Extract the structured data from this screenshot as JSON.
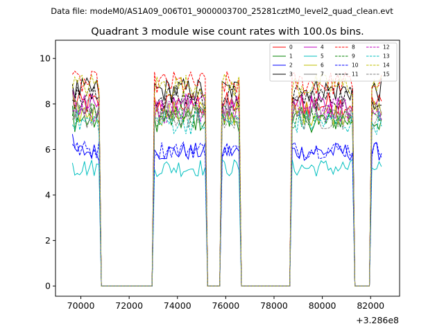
{
  "header": {
    "data_file": "Data file: modeM0/AS1A09_006T01_9000003700_25281cztM0_level2_quad_clean.evt"
  },
  "chart_data": {
    "type": "line",
    "title": "Quadrant 3 module wise count rates with 100.0s bins.",
    "xlabel": "",
    "ylabel": "",
    "x_offset_label": "+3.286e8",
    "xlim": [
      68950,
      83200
    ],
    "ylim": [
      -0.45,
      10.8
    ],
    "x_ticks": [
      70000,
      72000,
      74000,
      76000,
      78000,
      80000,
      82000
    ],
    "x_tick_labels": [
      "70000",
      "72000",
      "74000",
      "76000",
      "78000",
      "80000",
      "82000"
    ],
    "y_ticks": [
      0,
      2,
      4,
      6,
      8,
      10
    ],
    "y_tick_labels": [
      "0",
      "2",
      "4",
      "6",
      "8",
      "10"
    ],
    "legend_position": "top-right",
    "segments": [
      {
        "start": 69650,
        "end": 70750
      },
      {
        "start": 73050,
        "end": 75150
      },
      {
        "start": 75850,
        "end": 76550
      },
      {
        "start": 78750,
        "end": 81250
      },
      {
        "start": 82050,
        "end": 82450
      }
    ],
    "series": [
      {
        "name": "0",
        "color": "#ff0000",
        "dash": "solid",
        "level": 8.0
      },
      {
        "name": "1",
        "color": "#008000",
        "dash": "solid",
        "level": 7.3
      },
      {
        "name": "2",
        "color": "#0000ff",
        "dash": "solid",
        "level": 5.9
      },
      {
        "name": "3",
        "color": "#000000",
        "dash": "solid",
        "level": 8.6
      },
      {
        "name": "4",
        "color": "#bf00bf",
        "dash": "solid",
        "level": 7.9
      },
      {
        "name": "5",
        "color": "#00bfbf",
        "dash": "solid",
        "level": 5.2
      },
      {
        "name": "6",
        "color": "#bfbf00",
        "dash": "solid",
        "level": 7.6
      },
      {
        "name": "7",
        "color": "#808080",
        "dash": "solid",
        "level": 7.8
      },
      {
        "name": "8",
        "color": "#ff0000",
        "dash": "dashed",
        "level": 8.9
      },
      {
        "name": "9",
        "color": "#008000",
        "dash": "dashed",
        "level": 7.5
      },
      {
        "name": "10",
        "color": "#0000ff",
        "dash": "dashed",
        "level": 6.0
      },
      {
        "name": "11",
        "color": "#000000",
        "dash": "dashed",
        "level": 8.3
      },
      {
        "name": "12",
        "color": "#bf00bf",
        "dash": "dashed",
        "level": 7.7
      },
      {
        "name": "13",
        "color": "#00bfbf",
        "dash": "dashed",
        "level": 7.2
      },
      {
        "name": "14",
        "color": "#bfbf00",
        "dash": "dashed",
        "level": 8.8
      },
      {
        "name": "15",
        "color": "#808080",
        "dash": "dashed",
        "level": 7.4
      }
    ]
  }
}
